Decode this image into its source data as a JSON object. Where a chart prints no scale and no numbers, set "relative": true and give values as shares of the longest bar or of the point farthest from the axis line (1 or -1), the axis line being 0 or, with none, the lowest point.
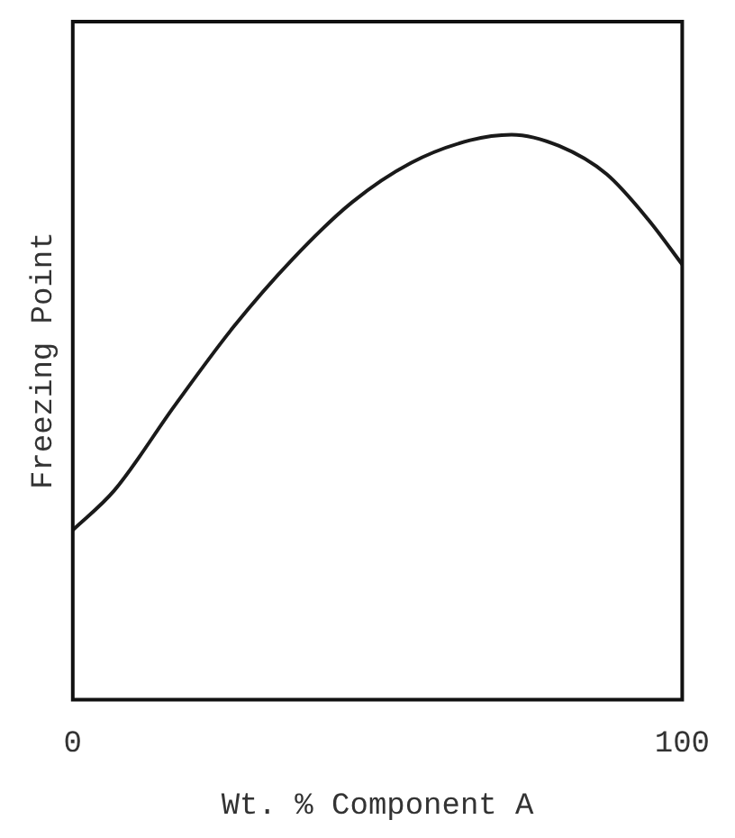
{
  "chart_data": {
    "type": "line",
    "xlabel": "Wt. % Component A",
    "ylabel": "Freezing Point",
    "relative": true,
    "xlim": [
      0,
      100
    ],
    "xticks": [
      0,
      100
    ],
    "grid": false,
    "legend": false,
    "marker": "none",
    "line_style": "solid",
    "series": [
      {
        "color": "#1a1a1a",
        "x": [
          0,
          6.8,
          16.7,
          26.4,
          36.1,
          45.8,
          55.5,
          65.2,
          72,
          79.8,
          87.6,
          94.4,
          100
        ],
        "values": [
          0.3,
          0.37,
          0.52,
          0.66,
          0.78,
          0.88,
          0.95,
          0.99,
          1,
          0.98,
          0.93,
          0.85,
          0.77
        ]
      }
    ]
  }
}
